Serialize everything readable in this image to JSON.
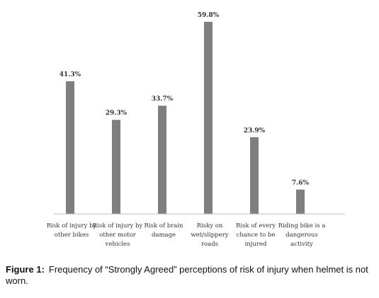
{
  "chart_data": {
    "type": "bar",
    "categories": [
      [
        "Risk of injury by",
        "other bikes"
      ],
      [
        "Risk of injury by",
        "other motor",
        "vehicles"
      ],
      [
        "Risk of brain",
        "damage"
      ],
      [
        "Risky on",
        "wet/slippery",
        "roads"
      ],
      [
        "Risk of every",
        "chance to be",
        "injured"
      ],
      [
        "Riding bike is a",
        "dangerous",
        "activity"
      ]
    ],
    "values": [
      41.3,
      29.3,
      33.7,
      59.8,
      23.9,
      7.6
    ],
    "value_labels": [
      "41.3%",
      "29.3%",
      "33.7%",
      "59.8%",
      "23.9%",
      "7.6%"
    ],
    "bar_color": "#7f7f7f",
    "ylim": [
      0,
      60
    ],
    "grid": false,
    "legend": "none"
  },
  "caption": {
    "label": "Figure 1:",
    "text": "Frequency of “Strongly Agreed” perceptions of risk of injury when helmet is not worn."
  }
}
